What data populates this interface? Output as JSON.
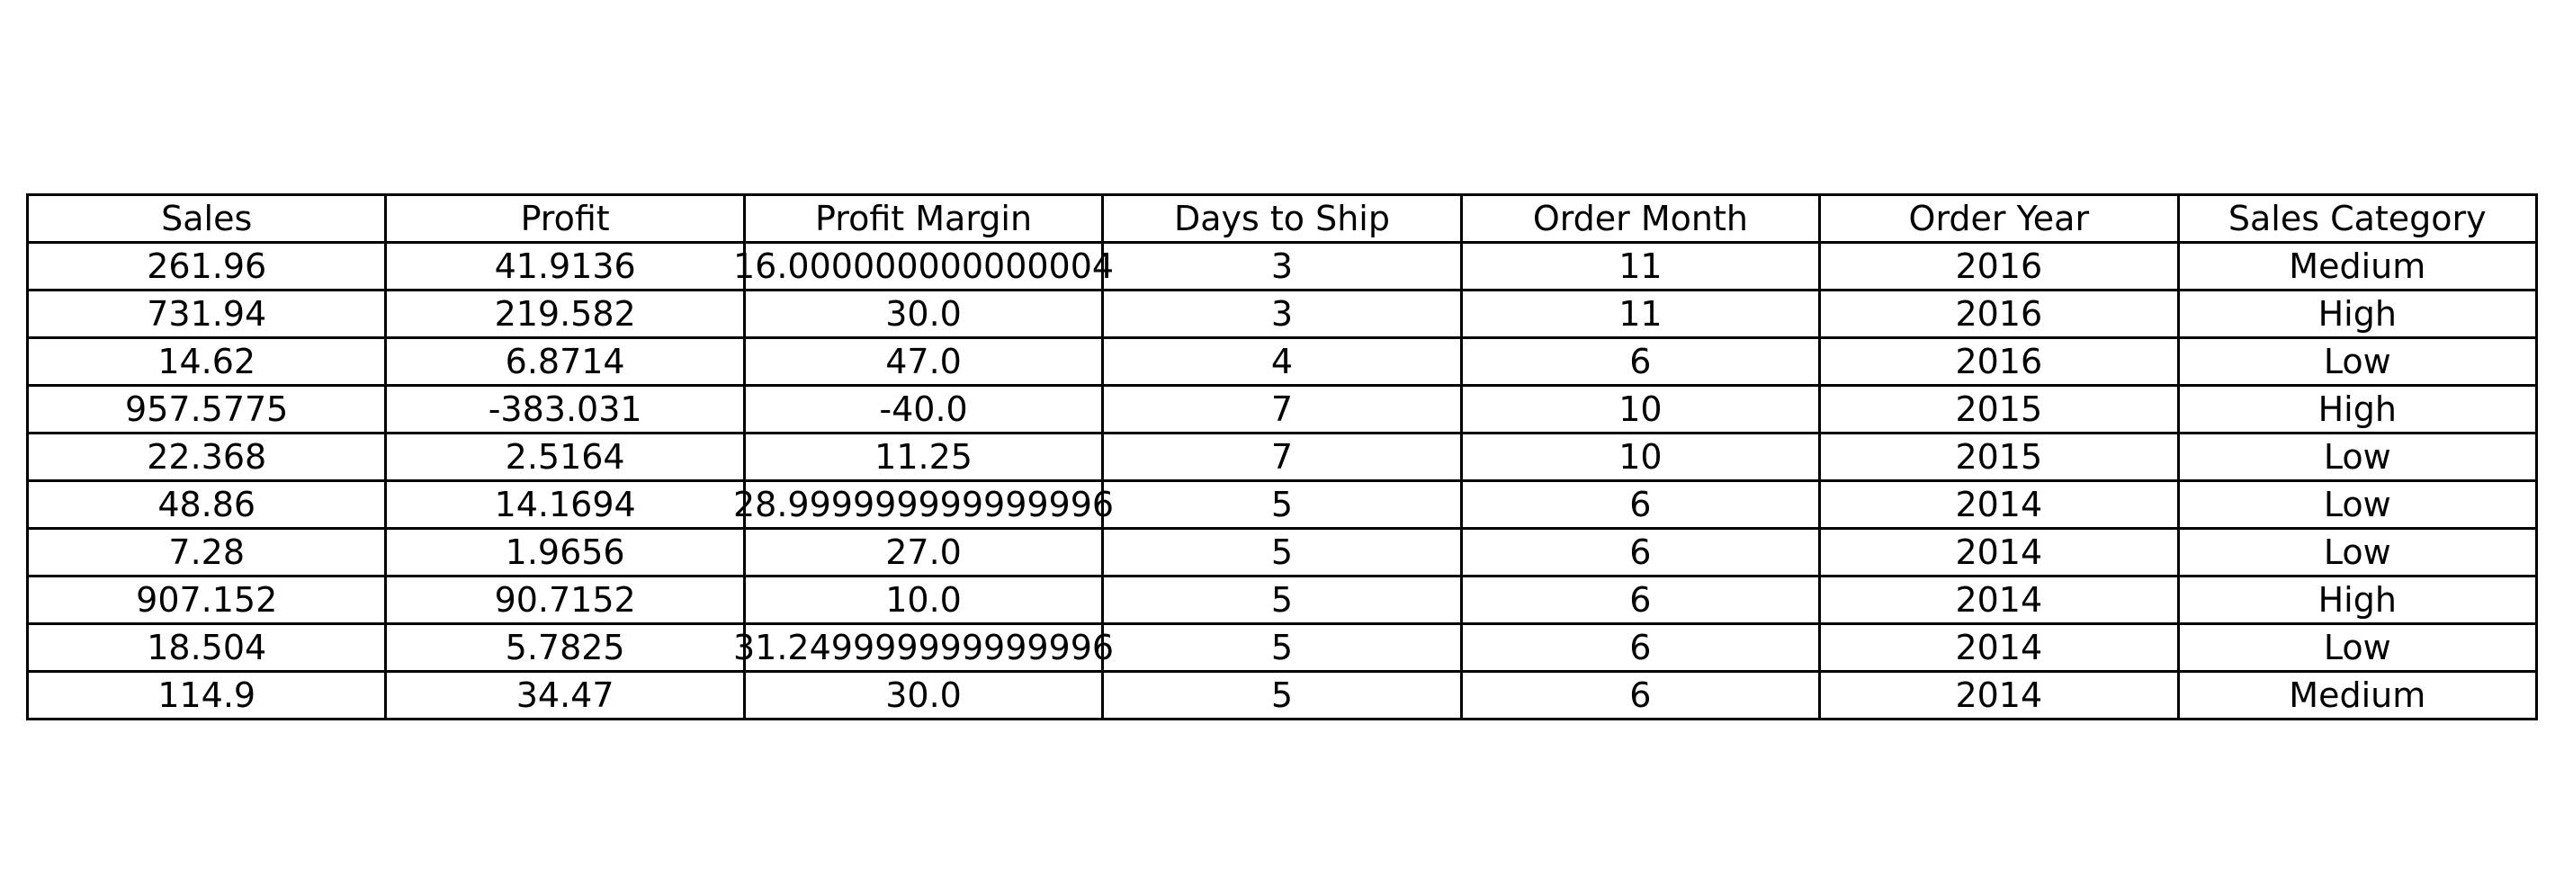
{
  "chart_data": {
    "type": "table",
    "columns": [
      "Sales",
      "Profit",
      "Profit Margin",
      "Days to Ship",
      "Order Month",
      "Order Year",
      "Sales Category"
    ],
    "rows": [
      [
        "261.96",
        "41.9136",
        "16.000000000000004",
        "3",
        "11",
        "2016",
        "Medium"
      ],
      [
        "731.94",
        "219.582",
        "30.0",
        "3",
        "11",
        "2016",
        "High"
      ],
      [
        "14.62",
        "6.8714",
        "47.0",
        "4",
        "6",
        "2016",
        "Low"
      ],
      [
        "957.5775",
        "-383.031",
        "-40.0",
        "7",
        "10",
        "2015",
        "High"
      ],
      [
        "22.368",
        "2.5164",
        "11.25",
        "7",
        "10",
        "2015",
        "Low"
      ],
      [
        "48.86",
        "14.1694",
        "28.999999999999996",
        "5",
        "6",
        "2014",
        "Low"
      ],
      [
        "7.28",
        "1.9656",
        "27.0",
        "5",
        "6",
        "2014",
        "Low"
      ],
      [
        "907.152",
        "90.7152",
        "10.0",
        "5",
        "6",
        "2014",
        "High"
      ],
      [
        "18.504",
        "5.7825",
        "31.249999999999996",
        "5",
        "6",
        "2014",
        "Low"
      ],
      [
        "114.9",
        "34.47",
        "30.0",
        "5",
        "6",
        "2014",
        "Medium"
      ]
    ]
  }
}
